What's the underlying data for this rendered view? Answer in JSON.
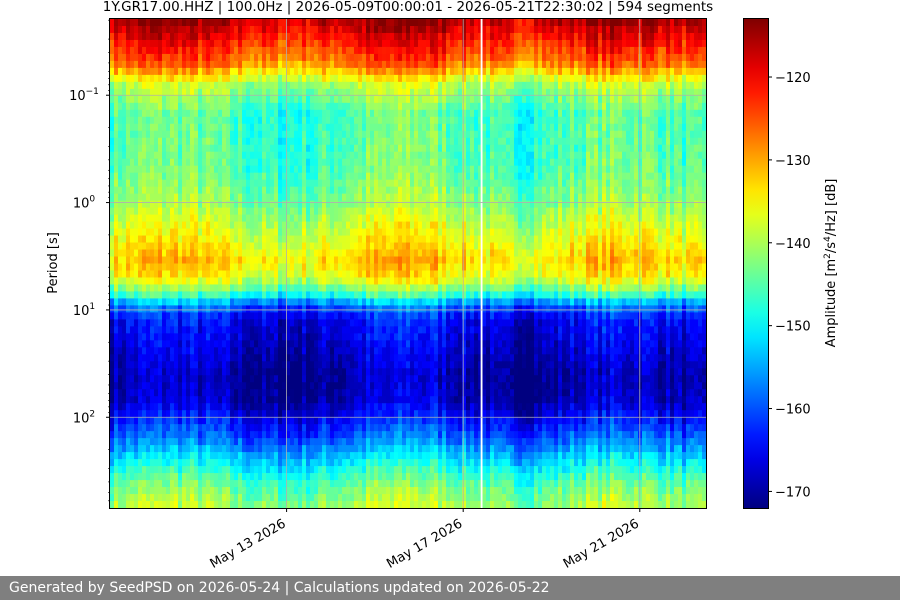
{
  "chart_data": {
    "type": "heatmap",
    "title": "1Y.GR17.00.HHZ | 100.0Hz | 2026-05-09T00:00:01 - 2026-05-21T22:30:02 | 594 segments",
    "ylabel": "Period [s]",
    "colorbar_label_parts": [
      "Amplitude [m",
      "2",
      "/s",
      "4",
      "/Hz] [dB]"
    ],
    "yscale": "log",
    "ylim": [
      700,
      0.0195
    ],
    "xlim": [
      "2026-05-09T00:00",
      "2026-05-22T12:00"
    ],
    "x_ticks": [
      {
        "value": "2026-05-13",
        "label": "May 13 2026"
      },
      {
        "value": "2026-05-17",
        "label": "May 17 2026"
      },
      {
        "value": "2026-05-21",
        "label": "May 21 2026"
      }
    ],
    "y_ticks": [
      {
        "value": 0.1,
        "base": "10",
        "exp": "−1"
      },
      {
        "value": 1,
        "base": "10",
        "exp": "0"
      },
      {
        "value": 10,
        "base": "10",
        "exp": "1"
      },
      {
        "value": 100,
        "base": "10",
        "exp": "2"
      }
    ],
    "colorbar": {
      "colormap": "jet",
      "vmin": -172,
      "vmax": -113,
      "ticks": [
        -120,
        -130,
        -140,
        -150,
        -160,
        -170
      ],
      "tick_labels": [
        "−120",
        "−130",
        "−140",
        "−150",
        "−160",
        "−170"
      ]
    },
    "grid": true,
    "data_gaps": [
      "2026-05-17T09:30",
      "2026-05-17T10:30"
    ],
    "period_profile": [
      {
        "period": 0.02,
        "db": -116
      },
      {
        "period": 0.03,
        "db": -121
      },
      {
        "period": 0.05,
        "db": -127
      },
      {
        "period": 0.08,
        "db": -140
      },
      {
        "period": 0.15,
        "db": -146
      },
      {
        "period": 0.5,
        "db": -145
      },
      {
        "period": 1.0,
        "db": -142
      },
      {
        "period": 2.0,
        "db": -137
      },
      {
        "period": 3.5,
        "db": -133
      },
      {
        "period": 5.0,
        "db": -136
      },
      {
        "period": 7.0,
        "db": -146
      },
      {
        "period": 9.0,
        "db": -158
      },
      {
        "period": 12,
        "db": -165
      },
      {
        "period": 20,
        "db": -167
      },
      {
        "period": 40,
        "db": -170
      },
      {
        "period": 70,
        "db": -169
      },
      {
        "period": 100,
        "db": -165
      },
      {
        "period": 150,
        "db": -160
      },
      {
        "period": 250,
        "db": -152
      },
      {
        "period": 400,
        "db": -145
      },
      {
        "period": 700,
        "db": -140
      }
    ]
  },
  "footer": {
    "text": "Generated by SeedPSD on 2026-05-24 | Calculations updated on 2026-05-22"
  }
}
